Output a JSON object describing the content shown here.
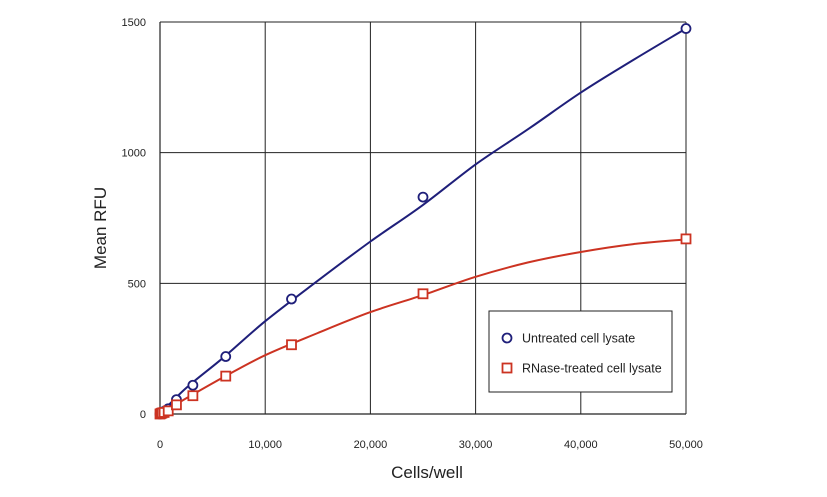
{
  "chart_data": {
    "type": "line",
    "xlabel": "Cells/well",
    "ylabel": "Mean RFU",
    "xlim": [
      0,
      50000
    ],
    "ylim": [
      0,
      1500
    ],
    "xticks": [
      0,
      10000,
      20000,
      30000,
      40000,
      50000
    ],
    "xtick_labels": [
      "0",
      "10,000",
      "20,000",
      "30,000",
      "40,000",
      "50,000"
    ],
    "yticks": [
      0,
      500,
      1000,
      1500
    ],
    "ytick_labels": [
      "0",
      "500",
      "1000",
      "1500"
    ],
    "grid": true,
    "legend_position": "bottom-right",
    "series": [
      {
        "name": "Untreated cell lysate",
        "marker": "circle",
        "color": "#1f1f7a",
        "x": [
          0,
          98,
          195,
          390,
          781,
          1563,
          3125,
          6250,
          12500,
          25000,
          50000
        ],
        "y": [
          0,
          3,
          6,
          10,
          20,
          55,
          110,
          220,
          440,
          830,
          1475
        ],
        "curve": [
          [
            0,
            0
          ],
          [
            2500,
            100
          ],
          [
            6000,
            215
          ],
          [
            10000,
            355
          ],
          [
            15000,
            510
          ],
          [
            20000,
            660
          ],
          [
            25000,
            800
          ],
          [
            30000,
            955
          ],
          [
            35000,
            1090
          ],
          [
            40000,
            1230
          ],
          [
            45000,
            1355
          ],
          [
            50000,
            1475
          ]
        ]
      },
      {
        "name": "RNase-treated cell lysate",
        "marker": "square",
        "color": "#cc3322",
        "x": [
          0,
          98,
          195,
          390,
          781,
          1563,
          3125,
          6250,
          12500,
          25000,
          50000
        ],
        "y": [
          0,
          2,
          4,
          6,
          12,
          35,
          70,
          145,
          265,
          460,
          670
        ],
        "curve": [
          [
            0,
            0
          ],
          [
            2500,
            60
          ],
          [
            6000,
            140
          ],
          [
            10000,
            225
          ],
          [
            15000,
            310
          ],
          [
            20000,
            390
          ],
          [
            25000,
            455
          ],
          [
            30000,
            525
          ],
          [
            35000,
            580
          ],
          [
            40000,
            620
          ],
          [
            45000,
            650
          ],
          [
            50000,
            668
          ]
        ]
      }
    ]
  }
}
